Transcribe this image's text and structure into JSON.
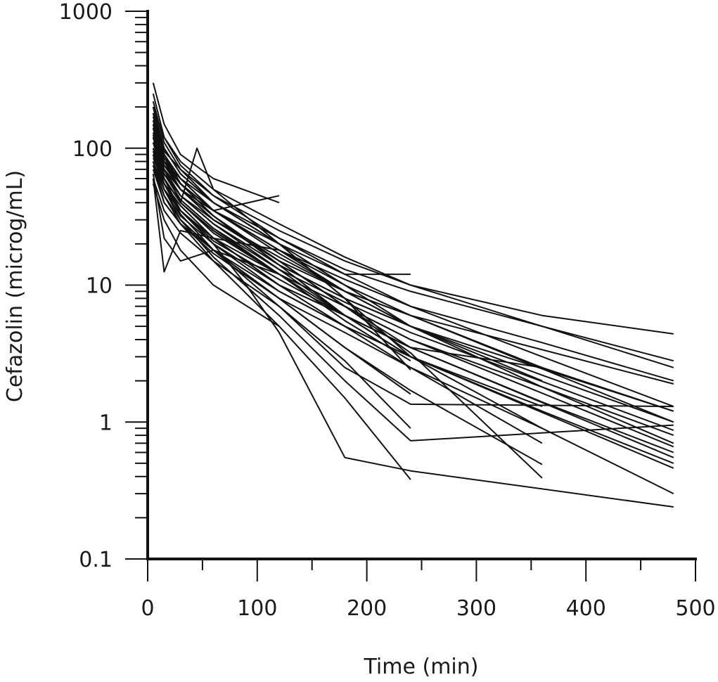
{
  "chart_data": {
    "type": "line",
    "title": "",
    "xlabel": "Time (min)",
    "ylabel": "Cefazolin (microg/mL)",
    "x_scale": "linear",
    "y_scale": "log",
    "xlim": [
      0,
      500
    ],
    "ylim": [
      0.1,
      1000
    ],
    "x_ticks": [
      0,
      100,
      200,
      300,
      400,
      500
    ],
    "y_ticks": [
      0.1,
      1,
      10,
      100,
      1000
    ],
    "y_tick_labels": [
      "0.1",
      "1",
      "10",
      "100",
      "1000"
    ],
    "grid": false,
    "legend": "none",
    "line_color": "#111111",
    "series": [
      {
        "x": [
          5,
          15,
          30,
          60,
          120,
          180,
          240,
          360,
          480
        ],
        "y": [
          150,
          95,
          70,
          45,
          25,
          15,
          10,
          6,
          4.4
        ]
      },
      {
        "x": [
          5,
          15,
          30,
          60,
          120,
          180,
          240,
          360,
          480
        ],
        "y": [
          130,
          80,
          60,
          40,
          22,
          13,
          9,
          5,
          2.8
        ]
      },
      {
        "x": [
          5,
          15,
          30,
          60,
          120,
          180,
          240,
          360,
          480
        ],
        "y": [
          200,
          120,
          80,
          50,
          28,
          16,
          10,
          5,
          2.5
        ]
      },
      {
        "x": [
          5,
          15,
          30,
          60,
          120,
          180,
          240,
          360,
          480
        ],
        "y": [
          110,
          75,
          55,
          35,
          18,
          11,
          7,
          3.8,
          2.0
        ]
      },
      {
        "x": [
          5,
          15,
          30,
          60,
          120,
          180,
          240,
          360,
          480
        ],
        "y": [
          90,
          65,
          45,
          30,
          16,
          9,
          6,
          2.5,
          1.2
        ]
      },
      {
        "x": [
          5,
          15,
          30,
          60,
          120,
          180,
          240,
          360,
          480
        ],
        "y": [
          120,
          70,
          50,
          32,
          14,
          8,
          5,
          2.2,
          1.0
        ]
      },
      {
        "x": [
          5,
          15,
          30,
          60,
          120,
          180,
          240,
          360,
          480
        ],
        "y": [
          100,
          60,
          40,
          25,
          12,
          7,
          4,
          1.8,
          0.8
        ]
      },
      {
        "x": [
          5,
          15,
          30,
          60,
          120,
          180,
          240,
          360,
          480
        ],
        "y": [
          85,
          55,
          38,
          22,
          10,
          6,
          3.5,
          1.4,
          0.6
        ]
      },
      {
        "x": [
          5,
          15,
          30,
          60,
          120,
          180,
          240,
          360,
          480
        ],
        "y": [
          140,
          80,
          55,
          35,
          17,
          9,
          5,
          1.8,
          0.7
        ]
      },
      {
        "x": [
          5,
          15,
          30,
          60,
          120,
          180,
          240,
          360,
          480
        ],
        "y": [
          95,
          55,
          35,
          20,
          9,
          5,
          3,
          1.2,
          0.5
        ]
      },
      {
        "x": [
          5,
          15,
          30,
          60,
          120,
          180,
          240,
          360,
          480
        ],
        "y": [
          75,
          45,
          30,
          18,
          8,
          4.5,
          2.5,
          0.9,
          0.3
        ]
      },
      {
        "x": [
          5,
          15,
          30,
          60,
          120,
          180,
          240,
          360,
          480
        ],
        "y": [
          160,
          100,
          65,
          40,
          20,
          12,
          7,
          3.0,
          1.3
        ]
      },
      {
        "x": [
          5,
          15,
          30,
          60,
          90,
          120,
          180,
          240,
          480
        ],
        "y": [
          120,
          60,
          35,
          20,
          10,
          4.5,
          0.55,
          0.44,
          0.24
        ]
      },
      {
        "x": [
          5,
          15,
          30,
          60,
          120,
          180,
          240,
          480
        ],
        "y": [
          100,
          55,
          33,
          18,
          7,
          2.5,
          1.35,
          1.3
        ]
      },
      {
        "x": [
          5,
          15,
          30,
          60,
          120,
          180,
          240,
          480
        ],
        "y": [
          90,
          50,
          30,
          16,
          6,
          2.0,
          0.73,
          0.95
        ]
      },
      {
        "x": [
          5,
          15,
          30,
          60,
          120,
          180,
          240
        ],
        "y": [
          80,
          45,
          28,
          15,
          5,
          1.5,
          0.38
        ]
      },
      {
        "x": [
          5,
          15,
          30,
          60,
          120,
          180,
          240
        ],
        "y": [
          220,
          110,
          70,
          40,
          20,
          8,
          2.4
        ]
      },
      {
        "x": [
          5,
          15,
          30,
          60,
          120,
          180,
          240
        ],
        "y": [
          180,
          90,
          60,
          35,
          18,
          9,
          5
        ]
      },
      {
        "x": [
          5,
          15,
          30,
          60,
          120,
          180,
          240
        ],
        "y": [
          140,
          75,
          50,
          30,
          15,
          7,
          3.5
        ]
      },
      {
        "x": [
          5,
          15,
          30,
          60,
          120,
          180,
          240
        ],
        "y": [
          110,
          60,
          40,
          25,
          12,
          5.5,
          2.8
        ]
      },
      {
        "x": [
          5,
          15,
          30,
          60,
          120,
          180,
          240
        ],
        "y": [
          70,
          40,
          28,
          17,
          8,
          3.5,
          1.6
        ]
      },
      {
        "x": [
          5,
          15,
          30,
          60,
          120,
          180,
          240
        ],
        "y": [
          60,
          35,
          24,
          15,
          7,
          2.8,
          0.9
        ]
      },
      {
        "x": [
          5,
          15,
          30,
          60,
          120,
          180,
          240
        ],
        "y": [
          150,
          85,
          55,
          32,
          14,
          6,
          3
        ]
      },
      {
        "x": [
          5,
          15,
          30,
          60,
          120,
          180,
          240
        ],
        "y": [
          250,
          120,
          75,
          45,
          22,
          12,
          12
        ]
      },
      {
        "x": [
          5,
          15,
          30,
          60,
          120,
          180,
          240,
          360
        ],
        "y": [
          200,
          100,
          65,
          40,
          20,
          10,
          5,
          2.0
        ]
      },
      {
        "x": [
          5,
          15,
          30,
          60,
          120,
          180,
          240,
          360
        ],
        "y": [
          130,
          70,
          45,
          28,
          13,
          6,
          3,
          0.9
        ]
      },
      {
        "x": [
          5,
          15,
          30,
          60,
          120,
          180,
          240,
          360
        ],
        "y": [
          100,
          55,
          38,
          22,
          10,
          5,
          2.5,
          0.7
        ]
      },
      {
        "x": [
          5,
          15,
          30,
          60,
          120,
          180,
          240,
          360
        ],
        "y": [
          80,
          45,
          30,
          18,
          8,
          3.5,
          1.7,
          0.49
        ]
      },
      {
        "x": [
          5,
          15,
          30,
          60,
          120,
          180,
          240,
          360
        ],
        "y": [
          170,
          90,
          55,
          32,
          15,
          7,
          3.2,
          0.39
        ]
      },
      {
        "x": [
          5,
          15,
          30,
          60,
          120,
          180,
          240,
          360
        ],
        "y": [
          120,
          65,
          42,
          26,
          12,
          6,
          3,
          1.3
        ]
      },
      {
        "x": [
          5,
          15,
          30,
          60,
          120,
          180,
          240,
          360
        ],
        "y": [
          90,
          50,
          35,
          21,
          11,
          6,
          3.5,
          2.5
        ]
      },
      {
        "x": [
          5,
          15,
          30,
          60,
          120
        ],
        "y": [
          110,
          70,
          50,
          35,
          45
        ]
      },
      {
        "x": [
          5,
          15,
          30,
          60,
          120
        ],
        "y": [
          300,
          150,
          90,
          60,
          40
        ]
      },
      {
        "x": [
          5,
          15,
          30,
          60,
          120
        ],
        "y": [
          60,
          12.5,
          25,
          22,
          18
        ]
      },
      {
        "x": [
          5,
          15,
          30,
          60,
          120
        ],
        "y": [
          65,
          22,
          15,
          18,
          12
        ]
      },
      {
        "x": [
          5,
          15,
          30,
          60,
          120
        ],
        "y": [
          150,
          60,
          40,
          24,
          12
        ]
      },
      {
        "x": [
          5,
          15,
          30,
          60,
          120
        ],
        "y": [
          55,
          30,
          18,
          10,
          5
        ]
      },
      {
        "x": [
          5,
          15,
          30,
          60,
          120
        ],
        "y": [
          180,
          90,
          60,
          35,
          20
        ]
      },
      {
        "x": [
          5,
          15,
          30,
          60,
          120
        ],
        "y": [
          80,
          50,
          35,
          22,
          12
        ]
      },
      {
        "x": [
          5,
          15,
          30,
          45,
          60,
          120,
          180,
          240
        ],
        "y": [
          120,
          70,
          40,
          100,
          50,
          20,
          8,
          3
        ]
      },
      {
        "x": [
          5,
          15,
          30,
          60,
          120,
          180,
          240,
          480
        ],
        "y": [
          140,
          70,
          45,
          28,
          14,
          8,
          5,
          1.2
        ]
      },
      {
        "x": [
          5,
          15,
          30,
          60,
          120,
          180,
          240,
          480
        ],
        "y": [
          200,
          90,
          55,
          35,
          18,
          10,
          6,
          1.0
        ]
      },
      {
        "x": [
          5,
          15,
          30,
          60,
          120,
          180,
          240,
          480
        ],
        "y": [
          110,
          60,
          40,
          25,
          12,
          7,
          4,
          0.66
        ]
      },
      {
        "x": [
          5,
          15,
          30,
          60,
          120,
          180,
          240,
          480
        ],
        "y": [
          90,
          50,
          32,
          20,
          10,
          6,
          3.5,
          0.55
        ]
      },
      {
        "x": [
          5,
          15,
          30,
          60,
          120,
          180,
          240,
          480
        ],
        "y": [
          160,
          80,
          50,
          30,
          15,
          9,
          6,
          1.9
        ]
      },
      {
        "x": [
          5,
          15,
          30,
          60,
          120,
          180,
          240,
          480
        ],
        "y": [
          75,
          40,
          28,
          18,
          9,
          5,
          3,
          0.46
        ]
      },
      {
        "x": [
          5,
          15,
          30,
          60,
          120,
          180,
          240,
          480
        ],
        "y": [
          125,
          65,
          42,
          26,
          13,
          7.5,
          4.5,
          0.87
        ]
      }
    ]
  }
}
